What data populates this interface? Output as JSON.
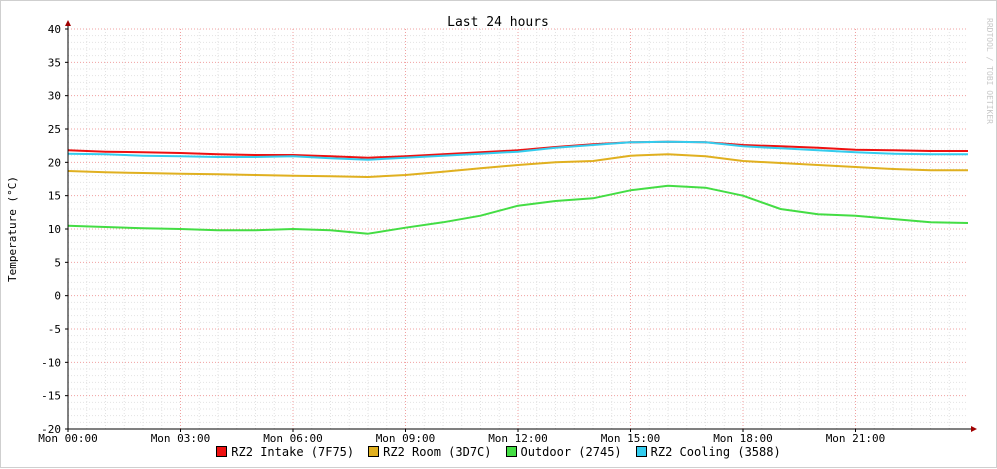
{
  "chart_data": {
    "type": "line",
    "title": "Last 24 hours",
    "ylabel": "Temperature (°C)",
    "watermark": "RRDTOOL / TOBI OETIKER",
    "ylim": [
      -20,
      40
    ],
    "yticks": [
      40,
      35,
      30,
      25,
      20,
      15,
      10,
      5,
      0,
      -5,
      -10,
      -15,
      -20
    ],
    "xlim_hours": [
      0,
      24
    ],
    "xticks": [
      "Mon 00:00",
      "Mon 03:00",
      "Mon 06:00",
      "Mon 09:00",
      "Mon 12:00",
      "Mon 15:00",
      "Mon 18:00",
      "Mon 21:00"
    ],
    "x_hours": [
      0,
      1,
      2,
      3,
      4,
      5,
      6,
      7,
      8,
      9,
      10,
      11,
      12,
      13,
      14,
      15,
      16,
      17,
      18,
      19,
      20,
      21,
      22,
      23,
      24
    ],
    "grid": true,
    "legend_position": "bottom",
    "series": [
      {
        "name": "RZ2 Intake (7F75)",
        "color": "#ee1111",
        "values": [
          21.8,
          21.6,
          21.5,
          21.4,
          21.2,
          21.1,
          21.1,
          20.9,
          20.7,
          20.9,
          21.2,
          21.5,
          21.8,
          22.3,
          22.7,
          23.0,
          23.1,
          23.0,
          22.6,
          22.4,
          22.2,
          21.9,
          21.8,
          21.7,
          21.7
        ]
      },
      {
        "name": "RZ2 Room (3D7C)",
        "color": "#e0b020",
        "values": [
          18.7,
          18.5,
          18.4,
          18.3,
          18.2,
          18.1,
          18.0,
          17.9,
          17.8,
          18.1,
          18.6,
          19.1,
          19.6,
          20.0,
          20.2,
          21.0,
          21.2,
          20.9,
          20.2,
          19.9,
          19.6,
          19.3,
          19.0,
          18.8,
          18.8
        ]
      },
      {
        "name": "Outdoor (2745)",
        "color": "#44dd44",
        "values": [
          10.5,
          10.3,
          10.1,
          10.0,
          9.8,
          9.8,
          10.0,
          9.8,
          9.3,
          10.2,
          11.0,
          12.0,
          13.5,
          14.2,
          14.6,
          15.8,
          16.5,
          16.2,
          15.0,
          13.0,
          12.2,
          12.0,
          11.5,
          11.0,
          10.9
        ]
      },
      {
        "name": "RZ2 Cooling (3588)",
        "color": "#33ccee",
        "values": [
          21.3,
          21.2,
          21.0,
          20.9,
          20.8,
          20.8,
          20.9,
          20.6,
          20.4,
          20.7,
          21.0,
          21.3,
          21.6,
          22.2,
          22.6,
          23.0,
          23.1,
          23.0,
          22.4,
          22.1,
          21.8,
          21.5,
          21.3,
          21.2,
          21.2
        ]
      }
    ]
  }
}
